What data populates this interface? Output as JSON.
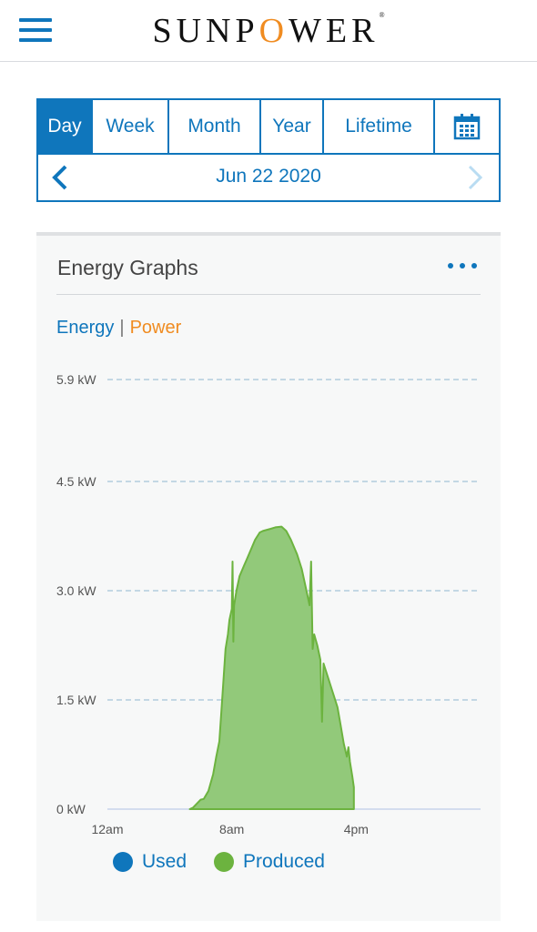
{
  "header": {
    "menu_icon": "hamburger-menu-icon",
    "logo_prefix": "SUNP",
    "logo_o": "O",
    "logo_suffix": "WER",
    "logo_mark": "®",
    "brand_color": "#0f76bc",
    "accent_color": "#f08c21"
  },
  "period_tabs": [
    {
      "label": "Day",
      "active": true
    },
    {
      "label": "Week",
      "active": false
    },
    {
      "label": "Month",
      "active": false
    },
    {
      "label": "Year",
      "active": false
    },
    {
      "label": "Lifetime",
      "active": false
    }
  ],
  "calendar_icon": "calendar-icon",
  "date_nav": {
    "date": "Jun 22 2020",
    "prev_icon": "chevron-left-icon",
    "next_icon": "chevron-right-icon",
    "next_enabled": false
  },
  "card": {
    "title": "Energy Graphs",
    "menu_icon": "more-dots-icon",
    "toggle_energy": "Energy",
    "toggle_sep": "|",
    "toggle_power": "Power"
  },
  "legend": [
    {
      "label": "Used",
      "color": "#0f76bc"
    },
    {
      "label": "Produced",
      "color": "#6cb33f"
    }
  ],
  "chart_data": {
    "type": "area",
    "title": "",
    "xlabel": "",
    "ylabel": "",
    "y_ticks": [
      "0 kW",
      "1.5 kW",
      "3.0 kW",
      "4.5 kW",
      "5.9 kW"
    ],
    "y_tick_values": [
      0,
      1.5,
      3.0,
      4.5,
      5.9
    ],
    "x_ticks": [
      "12am",
      "8am",
      "4pm"
    ],
    "x_tick_hours": [
      0,
      8,
      16
    ],
    "xlim_hours": [
      0,
      24
    ],
    "ylim": [
      0,
      5.9
    ],
    "grid": "dashed horizontal",
    "legend_placement": "bottom",
    "series": [
      {
        "name": "Produced",
        "color": "#6cb33f",
        "fill": "#92c97a",
        "points": [
          [
            5.3,
            0.0
          ],
          [
            5.5,
            0.02
          ],
          [
            6.0,
            0.13
          ],
          [
            6.2,
            0.14
          ],
          [
            6.5,
            0.25
          ],
          [
            6.8,
            0.48
          ],
          [
            7.0,
            0.72
          ],
          [
            7.2,
            0.93
          ],
          [
            7.4,
            1.56
          ],
          [
            7.6,
            2.2
          ],
          [
            7.75,
            2.4
          ],
          [
            7.85,
            2.6
          ],
          [
            8.0,
            2.75
          ],
          [
            8.05,
            3.4
          ],
          [
            8.1,
            2.3
          ],
          [
            8.15,
            2.8
          ],
          [
            8.3,
            3.0
          ],
          [
            8.5,
            3.2
          ],
          [
            8.8,
            3.35
          ],
          [
            9.0,
            3.45
          ],
          [
            9.2,
            3.55
          ],
          [
            9.5,
            3.7
          ],
          [
            9.8,
            3.8
          ],
          [
            10.0,
            3.82
          ],
          [
            10.5,
            3.85
          ],
          [
            10.8,
            3.87
          ],
          [
            11.2,
            3.88
          ],
          [
            11.5,
            3.82
          ],
          [
            11.8,
            3.7
          ],
          [
            12.2,
            3.5
          ],
          [
            12.5,
            3.3
          ],
          [
            12.8,
            3.0
          ],
          [
            13.0,
            2.8
          ],
          [
            13.1,
            3.4
          ],
          [
            13.2,
            2.2
          ],
          [
            13.3,
            2.4
          ],
          [
            13.5,
            2.25
          ],
          [
            13.7,
            2.05
          ],
          [
            13.8,
            1.2
          ],
          [
            13.9,
            2.0
          ],
          [
            14.2,
            1.8
          ],
          [
            14.5,
            1.6
          ],
          [
            14.8,
            1.4
          ],
          [
            15.0,
            1.15
          ],
          [
            15.2,
            0.9
          ],
          [
            15.4,
            0.72
          ],
          [
            15.5,
            0.85
          ],
          [
            15.6,
            0.65
          ],
          [
            15.75,
            0.45
          ],
          [
            15.85,
            0.3
          ]
        ]
      },
      {
        "name": "Used",
        "color": "#0f76bc",
        "points": []
      }
    ]
  }
}
